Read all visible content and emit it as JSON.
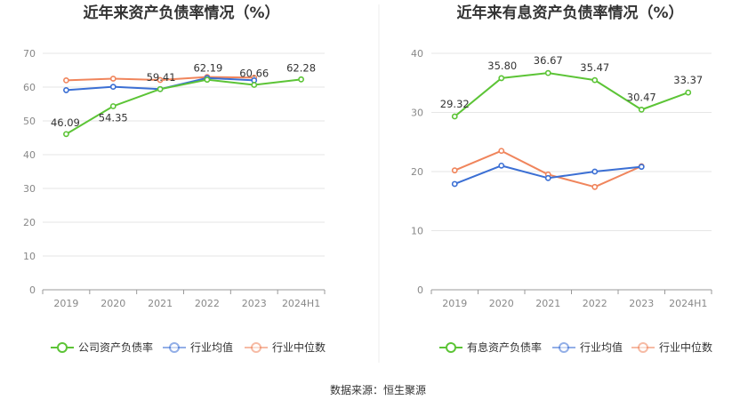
{
  "source_label": "数据来源：恒生聚源",
  "chart_data": [
    {
      "type": "line",
      "title": "近年来资产负债率情况（%）",
      "categories": [
        "2019",
        "2020",
        "2021",
        "2022",
        "2023",
        "2024H1"
      ],
      "ylim": [
        0,
        70
      ],
      "yticks": [
        0,
        10,
        20,
        30,
        40,
        50,
        60,
        70
      ],
      "grid": true,
      "legend_position": "bottom",
      "series": [
        {
          "name": "公司资产负债率",
          "color": "#5cc436",
          "labeled": true,
          "values": [
            46.09,
            54.35,
            59.41,
            62.19,
            60.66,
            62.28
          ],
          "labels": [
            "46.09",
            "54.35",
            "59.41",
            "62.19",
            "60.66",
            "62.28"
          ]
        },
        {
          "name": "行业均值",
          "color": "#3b6fd4",
          "labeled": false,
          "values": [
            59.1,
            60.1,
            59.4,
            62.7,
            62.0,
            null
          ]
        },
        {
          "name": "行业中位数",
          "color": "#f0855c",
          "labeled": false,
          "values": [
            62.0,
            62.5,
            62.1,
            63.0,
            62.8,
            null
          ]
        }
      ]
    },
    {
      "type": "line",
      "title": "近年来有息资产负债率情况（%）",
      "categories": [
        "2019",
        "2020",
        "2021",
        "2022",
        "2023",
        "2024H1"
      ],
      "ylim": [
        0,
        40
      ],
      "yticks": [
        0,
        10,
        20,
        30,
        40
      ],
      "grid": true,
      "legend_position": "bottom",
      "series": [
        {
          "name": "有息资产负债率",
          "color": "#5cc436",
          "labeled": true,
          "values": [
            29.32,
            35.8,
            36.67,
            35.47,
            30.47,
            33.37
          ],
          "labels": [
            "29.32",
            "35.80",
            "36.67",
            "35.47",
            "30.47",
            "33.37"
          ]
        },
        {
          "name": "行业均值",
          "color": "#3b6fd4",
          "labeled": false,
          "values": [
            17.9,
            21.0,
            18.9,
            20.0,
            20.8,
            null
          ]
        },
        {
          "name": "行业中位数",
          "color": "#f0855c",
          "labeled": false,
          "values": [
            20.2,
            23.5,
            19.5,
            17.4,
            20.9,
            null
          ]
        }
      ]
    }
  ]
}
